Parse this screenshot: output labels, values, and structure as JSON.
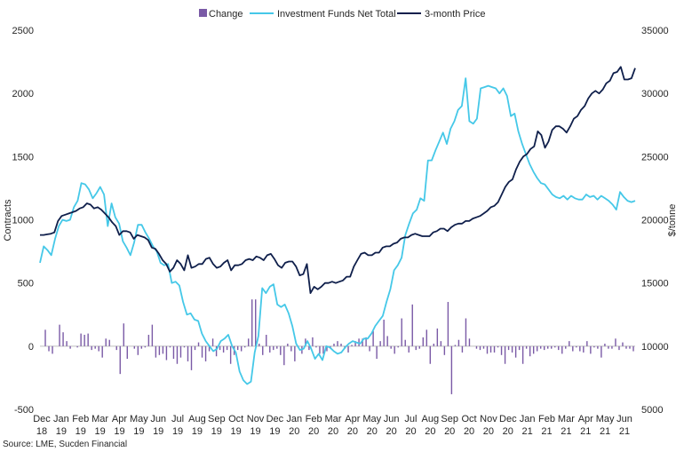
{
  "chart_data": {
    "type": "bar+line",
    "legend": [
      "Change",
      "Investment Funds Net Total",
      "3-month Price"
    ],
    "legend_position": "top",
    "colors": {
      "change": "#7a5aa6",
      "funds": "#45c8e8",
      "price": "#0f1f4b",
      "zero_line": "#bfbfbf"
    },
    "left_axis": {
      "label": "Contracts",
      "min": -500,
      "max": 2500,
      "ticks": [
        "-500",
        "0",
        "500",
        "1000",
        "1500",
        "2000",
        "2500"
      ]
    },
    "right_axis": {
      "label": "$/tonne",
      "min": 5000,
      "max": 35000,
      "ticks": [
        "5000",
        "10000",
        "15000",
        "20000",
        "25000",
        "30000",
        "35000"
      ]
    },
    "x_axis": {
      "tick_labels": [
        [
          "Dec",
          "18"
        ],
        [
          "Jan",
          "19"
        ],
        [
          "Feb",
          "19"
        ],
        [
          "Mar",
          "19"
        ],
        [
          "Apr",
          "19"
        ],
        [
          "May",
          "19"
        ],
        [
          "Jun",
          "19"
        ],
        [
          "Jul",
          "19"
        ],
        [
          "Aug",
          "19"
        ],
        [
          "Sep",
          "19"
        ],
        [
          "Oct",
          "19"
        ],
        [
          "Nov",
          "19"
        ],
        [
          "Dec",
          "19"
        ],
        [
          "Jan",
          "20"
        ],
        [
          "Feb",
          "20"
        ],
        [
          "Mar",
          "20"
        ],
        [
          "Apr",
          "20"
        ],
        [
          "May",
          "20"
        ],
        [
          "Jun",
          "20"
        ],
        [
          "Jul",
          "20"
        ],
        [
          "Aug",
          "20"
        ],
        [
          "Sep",
          "20"
        ],
        [
          "Oct",
          "20"
        ],
        [
          "Nov",
          "20"
        ],
        [
          "Dec",
          "20"
        ],
        [
          "Jan",
          "21"
        ],
        [
          "Feb",
          "21"
        ],
        [
          "Mar",
          "21"
        ],
        [
          "Apr",
          "21"
        ],
        [
          "May",
          "21"
        ],
        [
          "Jun",
          "21"
        ]
      ]
    },
    "grid": false,
    "series": {
      "funds_net_total": [
        660,
        790,
        760,
        720,
        850,
        950,
        1000,
        990,
        1000,
        1100,
        1150,
        1290,
        1280,
        1240,
        1170,
        1210,
        1260,
        1200,
        950,
        1130,
        1020,
        970,
        830,
        780,
        720,
        820,
        960,
        960,
        900,
        850,
        790,
        750,
        660,
        640,
        650,
        500,
        510,
        480,
        350,
        250,
        260,
        210,
        200,
        100,
        40,
        0,
        -40,
        -20,
        40,
        60,
        90,
        0,
        -50,
        -200,
        -270,
        -300,
        -280,
        -50,
        80,
        460,
        420,
        470,
        490,
        330,
        310,
        330,
        260,
        160,
        20,
        -30,
        -20,
        40,
        -20,
        -100,
        -60,
        -110,
        0,
        -10,
        -40,
        -60,
        -50,
        -10,
        20,
        40,
        30,
        20,
        60,
        60,
        100,
        160,
        200,
        240,
        350,
        450,
        600,
        640,
        700,
        880,
        970,
        1050,
        1080,
        1170,
        1150,
        1470,
        1470,
        1550,
        1620,
        1690,
        1600,
        1720,
        1780,
        1870,
        1900,
        2120,
        1780,
        1760,
        1800,
        2040,
        2050,
        2060,
        2050,
        2040,
        2000,
        2040,
        1980,
        1820,
        1840,
        1700,
        1600,
        1520,
        1440,
        1380,
        1330,
        1290,
        1280,
        1240,
        1200,
        1180,
        1170,
        1190,
        1160,
        1190,
        1170,
        1160,
        1160,
        1200,
        1180,
        1190,
        1160,
        1190,
        1170,
        1150,
        1120,
        1080,
        1220,
        1180,
        1150,
        1140,
        1150
      ],
      "price": [
        18800,
        18800,
        18850,
        18900,
        19000,
        19900,
        20300,
        20400,
        20500,
        20600,
        20700,
        20900,
        21000,
        21300,
        21200,
        20900,
        21000,
        20800,
        20500,
        20200,
        19800,
        19500,
        18800,
        19100,
        19100,
        19000,
        18500,
        18800,
        18700,
        18600,
        18400,
        17800,
        17700,
        17300,
        16800,
        16500,
        15900,
        16200,
        16800,
        16500,
        16000,
        17200,
        16200,
        16300,
        16500,
        16500,
        16900,
        17000,
        16500,
        16200,
        16300,
        16600,
        16800,
        16000,
        16400,
        16400,
        16500,
        16800,
        16900,
        16800,
        17100,
        17000,
        16800,
        17200,
        17300,
        16900,
        16400,
        16200,
        16600,
        16700,
        16700,
        16300,
        15600,
        15700,
        16500,
        14200,
        14700,
        14500,
        14700,
        15000,
        15000,
        15100,
        15000,
        15100,
        15200,
        15500,
        15500,
        16300,
        16800,
        17300,
        17400,
        17200,
        17200,
        17400,
        17400,
        17800,
        17900,
        17900,
        18100,
        18200,
        18500,
        18600,
        18600,
        18800,
        18900,
        18800,
        18700,
        18700,
        18700,
        19000,
        19100,
        19300,
        19300,
        19100,
        19400,
        19600,
        19700,
        19700,
        19900,
        19900,
        20100,
        20200,
        20300,
        20500,
        20700,
        21000,
        21100,
        21400,
        22000,
        22600,
        23000,
        23200,
        24000,
        24600,
        25000,
        25200,
        25600,
        25800,
        27000,
        26700,
        25700,
        26200,
        27100,
        27400,
        27400,
        27200,
        26900,
        27400,
        28000,
        28200,
        28700,
        29000,
        29600,
        30000,
        30200,
        30000,
        30300,
        30800,
        31000,
        31600,
        31700,
        32100,
        31100,
        31100,
        31200,
        32000
      ],
      "change": [
        0,
        130,
        -40,
        -60,
        0,
        170,
        110,
        40,
        -20,
        0,
        -10,
        100,
        90,
        100,
        -30,
        -20,
        -40,
        -90,
        60,
        50,
        0,
        -30,
        -220,
        180,
        -100,
        0,
        -20,
        -70,
        -20,
        -10,
        90,
        170,
        -90,
        -70,
        -60,
        -110,
        -10,
        -100,
        -140,
        -90,
        -10,
        -120,
        -190,
        -30,
        30,
        -90,
        -120,
        -40,
        60,
        -80,
        -30,
        -50,
        -30,
        -140,
        -70,
        -30,
        -40,
        -10,
        60,
        370,
        370,
        20,
        -70,
        90,
        -50,
        -30,
        -20,
        -70,
        -150,
        20,
        -40,
        -120,
        -10,
        -60,
        60,
        -30,
        70,
        -10,
        -60,
        -60,
        -40,
        -20,
        20,
        40,
        20,
        -20,
        -50,
        10,
        40,
        60,
        60,
        70,
        -40,
        120,
        -100,
        40,
        210,
        80,
        -20,
        -60,
        -10,
        220,
        50,
        -50,
        330,
        -30,
        -20,
        70,
        130,
        -140,
        20,
        140,
        40,
        -70,
        350,
        -380,
        10,
        50,
        -50,
        220,
        60,
        0,
        -20,
        -30,
        -20,
        -60,
        -50,
        -50,
        -10,
        -70,
        -140,
        -30,
        -50,
        -90,
        -30,
        -140,
        -20,
        -80,
        -60,
        -40,
        -20,
        -30,
        -20,
        -20,
        -10,
        -30,
        -60,
        -20,
        40,
        -40,
        -10,
        -40,
        -50,
        40,
        -60,
        -10,
        -20,
        -90,
        20,
        -20,
        -20,
        60,
        -30,
        30,
        -20,
        -20,
        -40
      ]
    }
  },
  "source": "Source: LME, Sucden Financial"
}
